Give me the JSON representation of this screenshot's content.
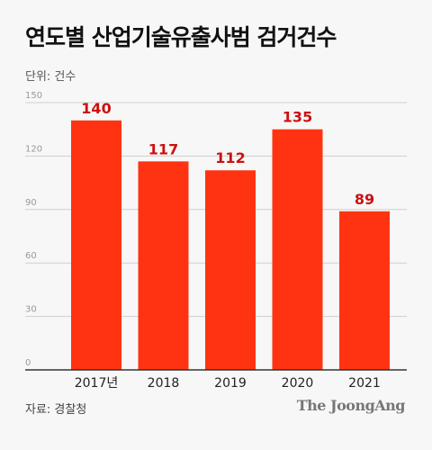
{
  "header": {
    "title": "연도별 산업기술유출사범 검거건수",
    "unit": "단위: 건수"
  },
  "footer": {
    "source": "자료: 경찰청",
    "brand": "The JoongAng"
  },
  "colors": {
    "bar": "#ff3311",
    "label": "#cc1111",
    "grid": "#cfcfcf",
    "axis": "#333333",
    "tick": "#999999"
  },
  "chart_data": {
    "type": "bar",
    "categories": [
      "2017년",
      "2018",
      "2019",
      "2020",
      "2021"
    ],
    "values": [
      140,
      117,
      112,
      135,
      89
    ],
    "yticks": [
      0,
      30,
      60,
      90,
      120,
      150
    ],
    "ylim": [
      0,
      150
    ],
    "grid": true,
    "title": "연도별 산업기술유출사범 검거건수",
    "ylabel": "단위: 건수"
  }
}
